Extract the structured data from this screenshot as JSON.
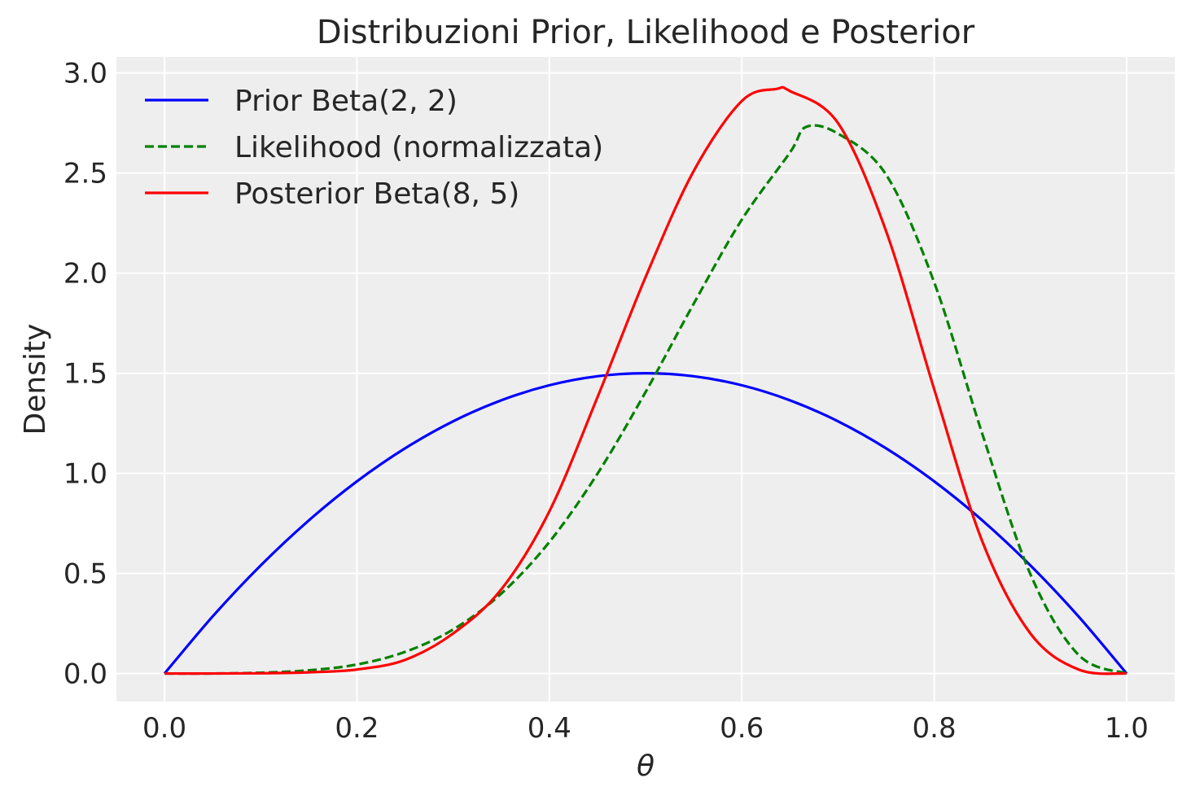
{
  "chart_data": {
    "type": "line",
    "title": "Distribuzioni Prior, Likelihood e Posterior",
    "xlabel": "θ",
    "ylabel": "Density",
    "xlim": [
      -0.05,
      1.05
    ],
    "ylim": [
      -0.14,
      3.08
    ],
    "xticks": [
      0.0,
      0.2,
      0.4,
      0.6,
      0.8,
      1.0
    ],
    "xtick_labels": [
      "0.0",
      "0.2",
      "0.4",
      "0.6",
      "0.8",
      "1.0"
    ],
    "yticks": [
      0.0,
      0.5,
      1.0,
      1.5,
      2.0,
      2.5,
      3.0
    ],
    "ytick_labels": [
      "0.0",
      "0.5",
      "1.0",
      "1.5",
      "2.0",
      "2.5",
      "3.0"
    ],
    "grid": true,
    "legend_position": "top-left",
    "background": "#eeeeee",
    "series": [
      {
        "name": "Prior Beta(2, 2)",
        "color": "#0000ff",
        "style": "solid",
        "x": [
          0.0,
          0.05,
          0.1,
          0.15,
          0.2,
          0.25,
          0.3,
          0.35,
          0.4,
          0.45,
          0.5,
          0.55,
          0.6,
          0.65,
          0.7,
          0.75,
          0.8,
          0.85,
          0.9,
          0.95,
          1.0
        ],
        "y": [
          0.0,
          0.285,
          0.54,
          0.765,
          0.96,
          1.125,
          1.26,
          1.365,
          1.44,
          1.485,
          1.5,
          1.485,
          1.44,
          1.365,
          1.26,
          1.125,
          0.96,
          0.765,
          0.54,
          0.285,
          0.0
        ]
      },
      {
        "name": "Likelihood (normalizzata)",
        "color": "#008000",
        "style": "dashed",
        "x": [
          0.0,
          0.05,
          0.1,
          0.15,
          0.2,
          0.25,
          0.3,
          0.35,
          0.4,
          0.45,
          0.5,
          0.55,
          0.6,
          0.65,
          0.667,
          0.7,
          0.75,
          0.8,
          0.85,
          0.9,
          0.95,
          1.0
        ],
        "y": [
          0.0,
          0.0,
          0.004,
          0.016,
          0.045,
          0.108,
          0.22,
          0.399,
          0.657,
          0.998,
          1.406,
          1.847,
          2.267,
          2.602,
          2.731,
          2.697,
          2.492,
          1.954,
          1.197,
          0.496,
          0.093,
          0.0
        ]
      },
      {
        "name": "Posterior Beta(8, 5)",
        "color": "#ff0000",
        "style": "solid",
        "x": [
          0.0,
          0.05,
          0.1,
          0.15,
          0.2,
          0.25,
          0.3,
          0.35,
          0.4,
          0.45,
          0.5,
          0.55,
          0.6,
          0.636,
          0.65,
          0.7,
          0.75,
          0.8,
          0.85,
          0.9,
          0.95,
          1.0
        ],
        "y": [
          0.0,
          0.0,
          0.001,
          0.006,
          0.02,
          0.068,
          0.2,
          0.42,
          0.81,
          1.38,
          1.98,
          2.51,
          2.86,
          2.92,
          2.91,
          2.75,
          2.21,
          1.42,
          0.66,
          0.2,
          0.02,
          0.0
        ]
      }
    ]
  }
}
